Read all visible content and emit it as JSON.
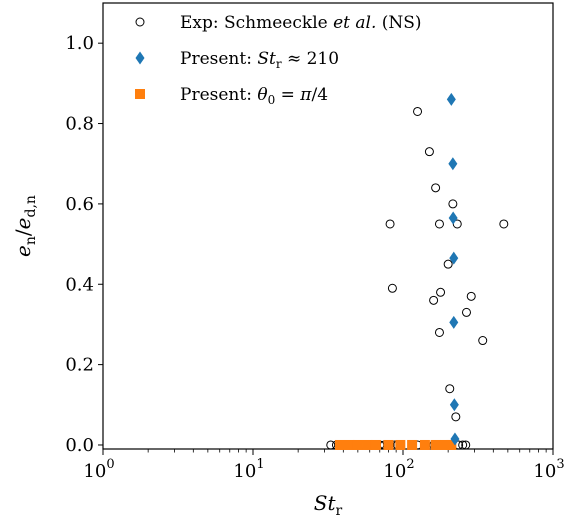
{
  "chart_data": {
    "type": "scatter",
    "xscale": "log",
    "xlim": [
      1,
      1000
    ],
    "ylim": [
      -0.01,
      1.1
    ],
    "xticks": [
      1,
      10,
      100,
      1000
    ],
    "xtick_labels": [
      {
        "base": "10",
        "exp": "0"
      },
      {
        "base": "10",
        "exp": "1"
      },
      {
        "base": "10",
        "exp": "2"
      },
      {
        "base": "10",
        "exp": "3"
      }
    ],
    "yticks": [
      0.0,
      0.2,
      0.4,
      0.6,
      0.8,
      1.0
    ],
    "ytick_labels": [
      "0.0",
      "0.2",
      "0.4",
      "0.6",
      "0.8",
      "1.0"
    ],
    "xlabel": {
      "main": "St",
      "sub": "r"
    },
    "ylabel": {
      "num": "e",
      "num_sub": "n",
      "den": "e",
      "den_sub": "d,n"
    },
    "legend_position": "top-right",
    "colors": {
      "diamond": "#1f77b4",
      "square": "#ff7f0e",
      "circle_edge": "#000000"
    },
    "series": [
      {
        "name": "Exp: Schmeeckle et al. (NS)",
        "legend_parts": [
          {
            "text": "Exp: Schmeeckle ",
            "style": "normal"
          },
          {
            "text": "et al.",
            "style": "italic"
          },
          {
            "text": " (NS)",
            "style": "normal"
          }
        ],
        "marker": "circle",
        "points": [
          [
            33,
            0
          ],
          [
            36,
            0
          ],
          [
            40,
            0
          ],
          [
            44,
            0
          ],
          [
            47,
            0
          ],
          [
            52,
            0
          ],
          [
            58,
            0
          ],
          [
            62,
            0
          ],
          [
            66,
            0
          ],
          [
            70,
            0
          ],
          [
            75,
            0
          ],
          [
            82,
            0
          ],
          [
            88,
            0
          ],
          [
            92,
            0
          ],
          [
            125,
            0
          ],
          [
            160,
            0
          ],
          [
            185,
            0
          ],
          [
            210,
            0
          ],
          [
            235,
            0
          ],
          [
            250,
            0
          ],
          [
            262,
            0
          ],
          [
            82,
            0.55
          ],
          [
            85,
            0.39
          ],
          [
            125,
            0.83
          ],
          [
            150,
            0.73
          ],
          [
            165,
            0.64
          ],
          [
            175,
            0.55
          ],
          [
            178,
            0.38
          ],
          [
            160,
            0.36
          ],
          [
            175,
            0.28
          ],
          [
            200,
            0.45
          ],
          [
            215,
            0.6
          ],
          [
            230,
            0.55
          ],
          [
            205,
            0.14
          ],
          [
            225,
            0.07
          ],
          [
            265,
            0.33
          ],
          [
            285,
            0.37
          ],
          [
            340,
            0.26
          ],
          [
            470,
            0.55
          ]
        ]
      },
      {
        "name": "Present: St_r ≈ 210",
        "legend_parts": [
          {
            "text": "Present: ",
            "style": "normal"
          },
          {
            "text": "St",
            "style": "italic"
          },
          {
            "text": "r",
            "style": "sub"
          },
          {
            "text": " ≈ 210",
            "style": "normal"
          }
        ],
        "marker": "diamond",
        "points": [
          [
            210,
            0.86
          ],
          [
            215,
            0.7
          ],
          [
            216,
            0.565
          ],
          [
            218,
            0.465
          ],
          [
            218,
            0.305
          ],
          [
            220,
            0.1
          ],
          [
            222,
            0.015
          ]
        ]
      },
      {
        "name": "Present: θ0 = π/4",
        "legend_parts": [
          {
            "text": "Present: ",
            "style": "normal"
          },
          {
            "text": "θ",
            "style": "italic"
          },
          {
            "text": "0",
            "style": "sub"
          },
          {
            "text": " = ",
            "style": "normal"
          },
          {
            "text": "π",
            "style": "italic"
          },
          {
            "text": "/4",
            "style": "normal"
          }
        ],
        "marker": "square",
        "points": [
          [
            38,
            0
          ],
          [
            44,
            0
          ],
          [
            50,
            0
          ],
          [
            58,
            0
          ],
          [
            66,
            0
          ],
          [
            80,
            0
          ],
          [
            96,
            0
          ],
          [
            115,
            0
          ],
          [
            140,
            0
          ],
          [
            165,
            0
          ],
          [
            190,
            0
          ],
          [
            210,
            0
          ]
        ]
      }
    ]
  }
}
